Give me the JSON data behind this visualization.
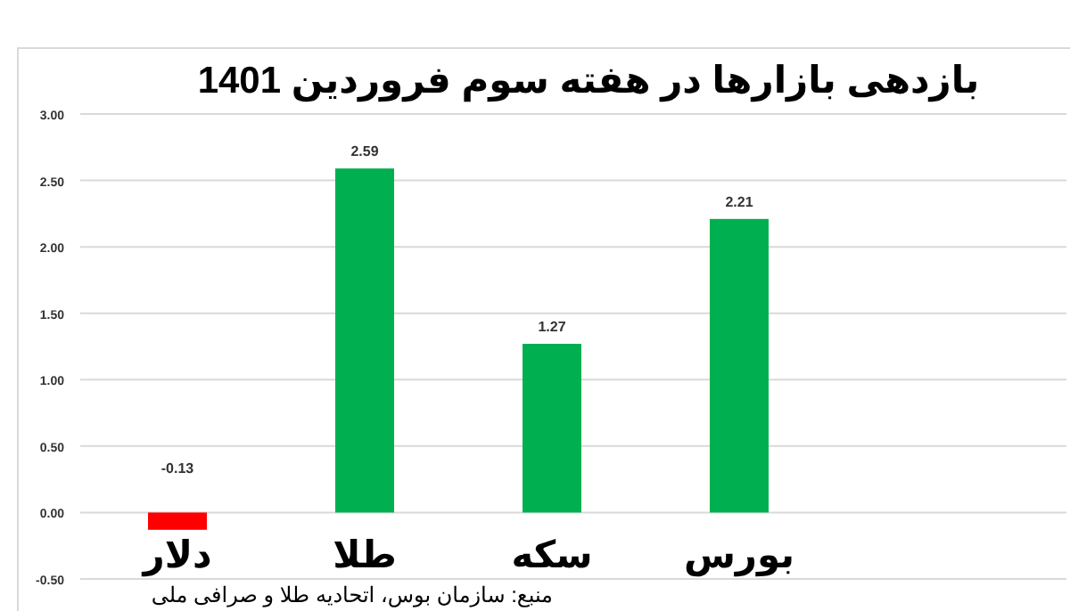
{
  "chart_data": {
    "type": "bar",
    "title": "بازدهی بازارها در هفته سوم فروردین 1401",
    "categories": [
      "دلار",
      "طلا",
      "سکه",
      "بورس"
    ],
    "values": [
      -0.13,
      2.59,
      1.27,
      2.21
    ],
    "colors": [
      "#ff0000",
      "#00b050",
      "#00b050",
      "#00b050"
    ],
    "ylim": [
      -0.5,
      3
    ],
    "yticks": [
      {
        "value": -0.5,
        "label": "-0.50"
      },
      {
        "value": 0,
        "label": "0.00"
      },
      {
        "value": 0.5,
        "label": "0.50"
      },
      {
        "value": 1,
        "label": "1.00"
      },
      {
        "value": 1.5,
        "label": "1.50"
      },
      {
        "value": 2,
        "label": "2.00"
      },
      {
        "value": 2.5,
        "label": "2.50"
      },
      {
        "value": 3,
        "label": "3.00"
      }
    ],
    "grid": "y",
    "data_labels": true,
    "annotations": [
      "منبع: سازمان بوس، اتحادیه طلا و صرافی ملی"
    ]
  }
}
